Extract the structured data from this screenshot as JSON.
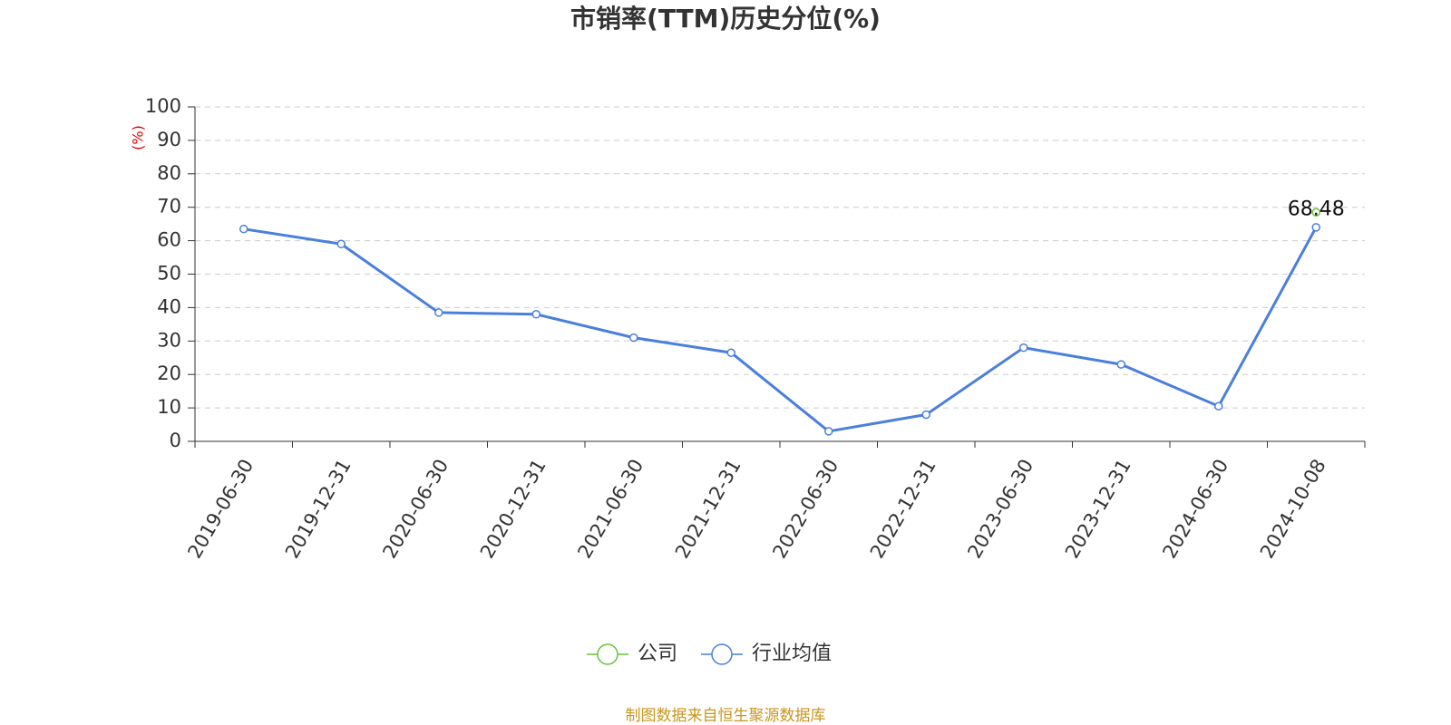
{
  "chart_data": {
    "type": "line",
    "title": "市销率(TTM)历史分位(%)",
    "y_label": "(%)",
    "categories": [
      "2019-06-30",
      "2019-12-31",
      "2020-06-30",
      "2020-12-31",
      "2021-06-30",
      "2021-12-31",
      "2022-06-30",
      "2022-12-31",
      "2023-06-30",
      "2023-12-31",
      "2024-06-30",
      "2024-10-08"
    ],
    "series": [
      {
        "name": "公司",
        "color": "#67c23a",
        "data_labels": true,
        "values": [
          null,
          null,
          null,
          null,
          null,
          null,
          null,
          null,
          null,
          null,
          null,
          68.48
        ]
      },
      {
        "name": "行业均值",
        "color": "#4a7fdc",
        "data_labels": false,
        "values": [
          63.5,
          59,
          38.5,
          38,
          31,
          26.5,
          3,
          8,
          28,
          23,
          10.5,
          64
        ]
      }
    ],
    "ylim": [
      0,
      100
    ],
    "yticks": [
      0,
      10,
      20,
      30,
      40,
      50,
      60,
      70,
      80,
      90,
      100
    ],
    "grid": true,
    "source": "制图数据来自恒生聚源数据库"
  }
}
